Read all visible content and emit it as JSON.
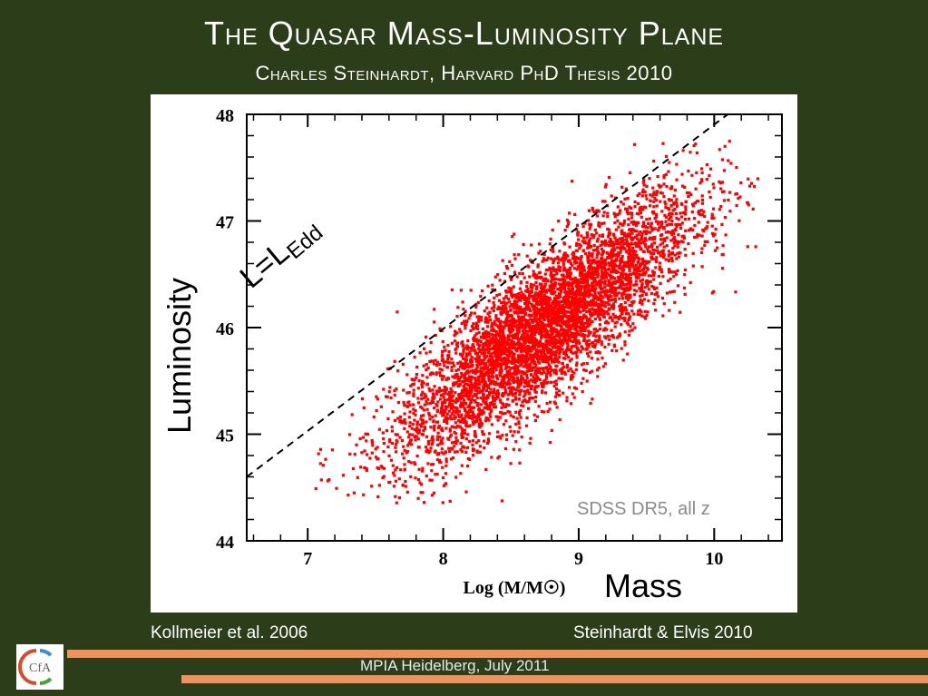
{
  "header": {
    "title": "The Quasar Mass-Luminosity Plane",
    "subtitle": "Charles Steinhardt, Harvard PhD Thesis 2010"
  },
  "chart_data": {
    "type": "scatter",
    "xlabel": "Log (M/M☉)",
    "ylabel": "Luminosity",
    "mass_label": "Mass",
    "xlim": [
      6.55,
      10.5
    ],
    "ylim": [
      44,
      48
    ],
    "xticks": [
      "7",
      "8",
      "9",
      "10"
    ],
    "yticks": [
      "44",
      "45",
      "46",
      "47",
      "48"
    ],
    "annotations": {
      "eddington_line": {
        "label_main": "L=L",
        "label_sub": "Edd",
        "style": "dashed",
        "points": [
          [
            6.55,
            44.6
          ],
          [
            10.1,
            48.0
          ]
        ]
      },
      "sample": "SDSS DR5, all z"
    },
    "series": [
      {
        "color": "#ff0000",
        "description_cloud": {
          "center": [
            8.75,
            46.0
          ],
          "extent_x": [
            7.1,
            10.2
          ],
          "extent_y": [
            44.5,
            47.6
          ]
        }
      }
    ]
  },
  "citations": {
    "left": "Kollmeier et al. 2006",
    "right": "Steinhardt & Elvis 2010"
  },
  "footer": {
    "text": "MPIA Heidelberg, July 2011"
  },
  "logo": {
    "text": "CfA"
  },
  "colors": {
    "background": "#2c3d1a",
    "points": "#ff0000",
    "accent_bar": "#f0925e"
  }
}
